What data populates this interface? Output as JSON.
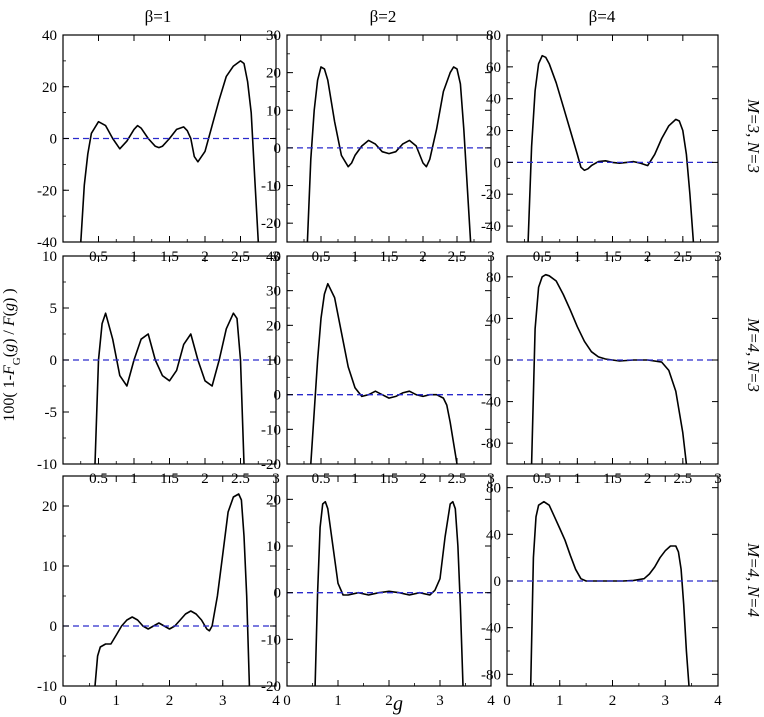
{
  "figure": {
    "column_titles": [
      "β=1",
      "β=2",
      "β=4"
    ],
    "row_labels": [
      "M=3, N=3",
      "M=4, N=3",
      "M=4, N=4"
    ],
    "ylabel": "100( 1-F_G(g) / F(g) )",
    "xlabel": "g"
  },
  "chart_data": [
    {
      "type": "line",
      "row": 0,
      "col": 0,
      "xlim": [
        0,
        3
      ],
      "ylim": [
        -40,
        40
      ],
      "xticks": [
        0.5,
        1,
        1.5,
        2,
        2.5,
        3
      ],
      "yticks": [
        -40,
        -20,
        0,
        20,
        40
      ],
      "reference_y": 0,
      "series": [
        {
          "color": "#000000",
          "x": [
            0.25,
            0.3,
            0.35,
            0.4,
            0.5,
            0.6,
            0.7,
            0.8,
            0.9,
            1.0,
            1.05,
            1.1,
            1.2,
            1.3,
            1.35,
            1.4,
            1.5,
            1.6,
            1.7,
            1.75,
            1.8,
            1.85,
            1.9,
            2.0,
            2.1,
            2.2,
            2.3,
            2.4,
            2.5,
            2.55,
            2.6,
            2.65,
            2.7,
            2.75
          ],
          "y": [
            -40,
            -18,
            -6,
            2,
            6.5,
            5,
            0,
            -4,
            -1,
            3.5,
            5,
            4,
            0,
            -3,
            -3.5,
            -3,
            0,
            3.5,
            4.5,
            3,
            0,
            -7,
            -9,
            -5,
            5,
            15,
            24,
            28,
            30,
            29,
            22,
            10,
            -15,
            -40
          ]
        },
        {
          "color": "#2a2acc",
          "dashed": true,
          "x": [
            0,
            3
          ],
          "y": [
            0,
            0
          ]
        }
      ]
    },
    {
      "type": "line",
      "row": 0,
      "col": 1,
      "xlim": [
        0,
        3
      ],
      "ylim": [
        -25,
        30
      ],
      "xticks": [
        0.5,
        1,
        1.5,
        2,
        2.5,
        3
      ],
      "yticks": [
        -20,
        -10,
        0,
        10,
        20,
        30
      ],
      "reference_y": 0,
      "series": [
        {
          "color": "#000000",
          "x": [
            0.3,
            0.35,
            0.4,
            0.45,
            0.5,
            0.55,
            0.6,
            0.7,
            0.8,
            0.9,
            0.95,
            1.0,
            1.1,
            1.2,
            1.3,
            1.4,
            1.5,
            1.6,
            1.7,
            1.8,
            1.9,
            2.0,
            2.05,
            2.1,
            2.2,
            2.3,
            2.4,
            2.45,
            2.5,
            2.55,
            2.6,
            2.65,
            2.7
          ],
          "y": [
            -25,
            -3,
            10,
            18,
            21.5,
            21,
            18,
            7,
            -2,
            -5,
            -4,
            -2,
            0.5,
            2,
            1,
            -1,
            -1.5,
            -1,
            1,
            2,
            0.5,
            -4,
            -5,
            -3,
            5,
            15,
            20,
            21.5,
            21,
            17,
            5,
            -10,
            -25
          ]
        },
        {
          "color": "#2a2acc",
          "dashed": true,
          "x": [
            0,
            3
          ],
          "y": [
            0,
            0
          ]
        }
      ]
    },
    {
      "type": "line",
      "row": 0,
      "col": 2,
      "xlim": [
        0,
        3
      ],
      "ylim": [
        -50,
        80
      ],
      "xticks": [
        0.5,
        1,
        1.5,
        2,
        2.5,
        3
      ],
      "yticks": [
        -40,
        -20,
        0,
        20,
        40,
        60,
        80
      ],
      "reference_y": 0,
      "series": [
        {
          "color": "#000000",
          "x": [
            0.3,
            0.35,
            0.4,
            0.45,
            0.5,
            0.55,
            0.6,
            0.7,
            0.8,
            0.9,
            1.0,
            1.05,
            1.1,
            1.15,
            1.2,
            1.3,
            1.4,
            1.5,
            1.6,
            1.7,
            1.8,
            1.9,
            2.0,
            2.1,
            2.2,
            2.3,
            2.4,
            2.45,
            2.5,
            2.55,
            2.6,
            2.65
          ],
          "y": [
            -50,
            10,
            45,
            62,
            67,
            66,
            62,
            50,
            35,
            20,
            5,
            -3,
            -5,
            -4,
            -2,
            0.5,
            1,
            0,
            -0.5,
            0,
            0.5,
            -0.5,
            -2,
            5,
            15,
            23,
            27,
            26,
            20,
            5,
            -20,
            -50
          ]
        },
        {
          "color": "#2a2acc",
          "dashed": true,
          "x": [
            0,
            3
          ],
          "y": [
            0,
            0
          ]
        }
      ]
    },
    {
      "type": "line",
      "row": 1,
      "col": 0,
      "xlim": [
        0,
        3
      ],
      "ylim": [
        -10,
        10
      ],
      "xticks": [
        0.5,
        1,
        1.5,
        2,
        2.5,
        3
      ],
      "yticks": [
        -10,
        -5,
        0,
        5,
        10
      ],
      "reference_y": 0,
      "series": [
        {
          "color": "#000000",
          "x": [
            0.45,
            0.5,
            0.55,
            0.6,
            0.7,
            0.8,
            0.9,
            1.0,
            1.1,
            1.2,
            1.3,
            1.4,
            1.5,
            1.6,
            1.7,
            1.8,
            1.9,
            2.0,
            2.1,
            2.2,
            2.3,
            2.4,
            2.45,
            2.5,
            2.55
          ],
          "y": [
            -10,
            0,
            3.5,
            4.5,
            2,
            -1.5,
            -2.5,
            0,
            2,
            2.5,
            0,
            -1.5,
            -2,
            -1,
            1.5,
            2.5,
            0,
            -2,
            -2.5,
            0,
            3,
            4.5,
            4,
            0,
            -10
          ]
        },
        {
          "color": "#2a2acc",
          "dashed": true,
          "x": [
            0,
            3
          ],
          "y": [
            0,
            0
          ]
        }
      ]
    },
    {
      "type": "line",
      "row": 1,
      "col": 1,
      "xlim": [
        0,
        3
      ],
      "ylim": [
        -20,
        40
      ],
      "xticks": [
        0.5,
        1,
        1.5,
        2,
        2.5,
        3
      ],
      "yticks": [
        -20,
        -10,
        0,
        10,
        20,
        30,
        40
      ],
      "reference_y": 0,
      "series": [
        {
          "color": "#000000",
          "x": [
            0.35,
            0.4,
            0.45,
            0.5,
            0.55,
            0.6,
            0.7,
            0.8,
            0.9,
            1.0,
            1.1,
            1.2,
            1.3,
            1.4,
            1.5,
            1.6,
            1.7,
            1.8,
            1.9,
            2.0,
            2.1,
            2.2,
            2.3,
            2.35,
            2.4,
            2.45,
            2.5
          ],
          "y": [
            -20,
            -5,
            10,
            22,
            29,
            32,
            28,
            18,
            8,
            2,
            -0.5,
            0,
            1,
            0,
            -1,
            -0.5,
            0.5,
            1,
            0,
            -0.5,
            0,
            0,
            -1,
            -3,
            -8,
            -14,
            -20
          ]
        },
        {
          "color": "#2a2acc",
          "dashed": true,
          "x": [
            0,
            3
          ],
          "y": [
            0,
            0
          ]
        }
      ]
    },
    {
      "type": "line",
      "row": 1,
      "col": 2,
      "xlim": [
        0,
        3
      ],
      "ylim": [
        -100,
        100
      ],
      "xticks": [
        0.5,
        1,
        1.5,
        2,
        2.5,
        3
      ],
      "yticks": [
        -80,
        -40,
        0,
        40,
        80
      ],
      "reference_y": 0,
      "series": [
        {
          "color": "#000000",
          "x": [
            0.35,
            0.4,
            0.45,
            0.5,
            0.55,
            0.6,
            0.7,
            0.8,
            0.9,
            1.0,
            1.1,
            1.2,
            1.3,
            1.4,
            1.5,
            1.6,
            1.8,
            2.0,
            2.2,
            2.3,
            2.4,
            2.5,
            2.55
          ],
          "y": [
            -100,
            30,
            70,
            80,
            82,
            81,
            76,
            63,
            48,
            32,
            18,
            8,
            3,
            1,
            0,
            -1,
            0,
            0,
            -2,
            -10,
            -30,
            -70,
            -100
          ]
        },
        {
          "color": "#2a2acc",
          "dashed": true,
          "x": [
            0,
            3
          ],
          "y": [
            0,
            0
          ]
        }
      ]
    },
    {
      "type": "line",
      "row": 2,
      "col": 0,
      "xlim": [
        0,
        4
      ],
      "ylim": [
        -10,
        25
      ],
      "xticks": [
        0,
        1,
        2,
        3,
        4
      ],
      "yticks": [
        -10,
        0,
        10,
        20
      ],
      "reference_y": 0,
      "series": [
        {
          "color": "#000000",
          "x": [
            0.6,
            0.65,
            0.7,
            0.8,
            0.9,
            1.0,
            1.1,
            1.2,
            1.3,
            1.4,
            1.5,
            1.6,
            1.7,
            1.8,
            1.9,
            2.0,
            2.1,
            2.2,
            2.3,
            2.4,
            2.5,
            2.6,
            2.7,
            2.75,
            2.8,
            2.9,
            3.0,
            3.1,
            3.2,
            3.3,
            3.35,
            3.4,
            3.45,
            3.5
          ],
          "y": [
            -10,
            -5,
            -3.5,
            -3,
            -3,
            -1.5,
            0,
            1,
            1.5,
            1,
            0,
            -0.5,
            0,
            0.5,
            0,
            -0.5,
            0,
            1,
            2,
            2.5,
            2,
            1,
            -0.5,
            -0.8,
            0,
            5,
            12,
            19,
            21.5,
            22,
            21,
            15,
            5,
            -10
          ]
        },
        {
          "color": "#2a2acc",
          "dashed": true,
          "x": [
            0,
            4
          ],
          "y": [
            0,
            0
          ]
        }
      ]
    },
    {
      "type": "line",
      "row": 2,
      "col": 1,
      "xlim": [
        0,
        4
      ],
      "ylim": [
        -20,
        25
      ],
      "xticks": [
        0,
        1,
        2,
        3,
        4
      ],
      "yticks": [
        -20,
        -10,
        0,
        10,
        20
      ],
      "reference_y": 0,
      "series": [
        {
          "color": "#000000",
          "x": [
            0.55,
            0.6,
            0.65,
            0.7,
            0.75,
            0.8,
            0.9,
            1.0,
            1.1,
            1.2,
            1.4,
            1.6,
            1.8,
            2.0,
            2.2,
            2.4,
            2.6,
            2.8,
            2.9,
            3.0,
            3.1,
            3.2,
            3.25,
            3.3,
            3.35,
            3.4,
            3.45
          ],
          "y": [
            -20,
            0,
            14,
            19,
            19.5,
            18,
            10,
            2,
            -0.5,
            -0.5,
            0,
            -0.5,
            0,
            0.3,
            0,
            -0.5,
            0,
            -0.5,
            0.5,
            3,
            12,
            19,
            19.5,
            18,
            10,
            -3,
            -20
          ]
        },
        {
          "color": "#2a2acc",
          "dashed": true,
          "x": [
            0,
            4
          ],
          "y": [
            0,
            0
          ]
        }
      ]
    },
    {
      "type": "line",
      "row": 2,
      "col": 2,
      "xlim": [
        0,
        4
      ],
      "ylim": [
        -90,
        90
      ],
      "xticks": [
        0,
        1,
        2,
        3,
        4
      ],
      "yticks": [
        -80,
        -40,
        0,
        40,
        80
      ],
      "reference_y": 0,
      "series": [
        {
          "color": "#000000",
          "x": [
            0.45,
            0.5,
            0.55,
            0.6,
            0.7,
            0.8,
            0.9,
            1.0,
            1.1,
            1.2,
            1.3,
            1.4,
            1.5,
            1.6,
            1.8,
            2.0,
            2.2,
            2.4,
            2.6,
            2.7,
            2.8,
            2.9,
            3.0,
            3.1,
            3.2,
            3.25,
            3.3,
            3.35,
            3.4,
            3.45
          ],
          "y": [
            -90,
            20,
            55,
            65,
            68,
            65,
            55,
            45,
            35,
            22,
            10,
            2,
            0,
            0,
            0,
            0,
            0,
            0.5,
            2,
            6,
            12,
            20,
            26,
            30,
            30,
            25,
            10,
            -20,
            -60,
            -90
          ]
        },
        {
          "color": "#2a2acc",
          "dashed": true,
          "x": [
            0,
            4
          ],
          "y": [
            0,
            0
          ]
        }
      ]
    }
  ]
}
